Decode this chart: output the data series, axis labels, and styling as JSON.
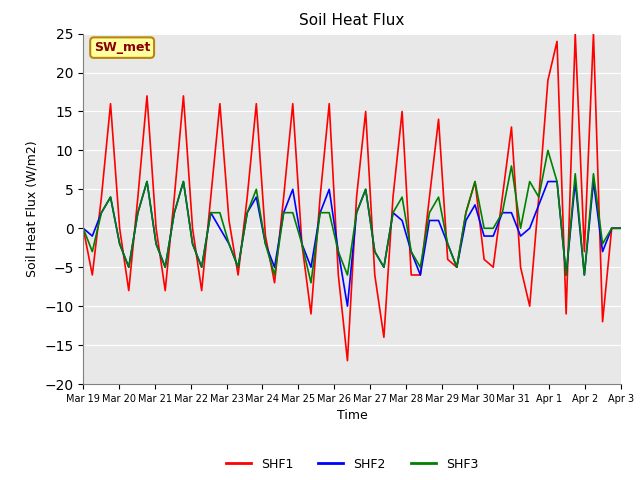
{
  "title": "Soil Heat Flux",
  "xlabel": "Time",
  "ylabel": "Soil Heat Flux (W/m2)",
  "ylim": [
    -20,
    25
  ],
  "yticks": [
    -20,
    -15,
    -10,
    -5,
    0,
    5,
    10,
    15,
    20,
    25
  ],
  "annotation_text": "SW_met",
  "annotation_color": "#8B0000",
  "annotation_bg": "#FFFFA0",
  "bg_color": "#E8E8E8",
  "series_colors": [
    "red",
    "blue",
    "green"
  ],
  "series_labels": [
    "SHF1",
    "SHF2",
    "SHF3"
  ],
  "x_tick_labels": [
    "Mar 19",
    "Mar 20",
    "Mar 21",
    "Mar 22",
    "Mar 23",
    "Mar 24",
    "Mar 25",
    "Mar 26",
    "Mar 27",
    "Mar 28",
    "Mar 29",
    "Mar 30",
    "Mar 31",
    "Apr 1",
    "Apr 2",
    "Apr 3"
  ],
  "shf1": [
    0,
    -6,
    4,
    16,
    0,
    -8,
    4,
    17,
    0,
    -8,
    4,
    17,
    0,
    -8,
    4,
    16,
    1,
    -6,
    4,
    16,
    -1,
    -7,
    4,
    16,
    -2,
    -11,
    4,
    16,
    -6,
    -17,
    4,
    15,
    -6,
    -14,
    4,
    15,
    -6,
    -6,
    4,
    14,
    -4,
    -5,
    2,
    6,
    -4,
    -5,
    4,
    13,
    -5,
    -10,
    4,
    19,
    24,
    -11,
    25,
    -3,
    25,
    -12,
    0,
    0
  ],
  "shf2": [
    0,
    -1,
    2,
    4,
    -2,
    -5,
    2,
    6,
    -2,
    -5,
    2,
    6,
    -2,
    -5,
    2,
    0,
    -2,
    -5,
    2,
    4,
    -2,
    -5,
    2,
    5,
    -2,
    -5,
    2,
    5,
    -3,
    -10,
    2,
    5,
    -3,
    -5,
    2,
    1,
    -3,
    -6,
    1,
    1,
    -2,
    -5,
    1,
    3,
    -1,
    -1,
    2,
    2,
    -1,
    0,
    3,
    6,
    6,
    -6,
    6,
    -6,
    6,
    -3,
    0,
    0
  ],
  "shf3": [
    0,
    -3,
    2,
    4,
    -2,
    -5,
    2,
    6,
    -2,
    -5,
    2,
    6,
    -2,
    -5,
    2,
    2,
    -2,
    -5,
    2,
    5,
    -2,
    -6,
    2,
    2,
    -2,
    -7,
    2,
    2,
    -3,
    -6,
    2,
    5,
    -3,
    -5,
    2,
    4,
    -3,
    -5,
    2,
    4,
    -2,
    -5,
    2,
    6,
    0,
    0,
    2,
    8,
    0,
    6,
    4,
    10,
    6,
    -6,
    7,
    -6,
    7,
    -2,
    0,
    0
  ]
}
